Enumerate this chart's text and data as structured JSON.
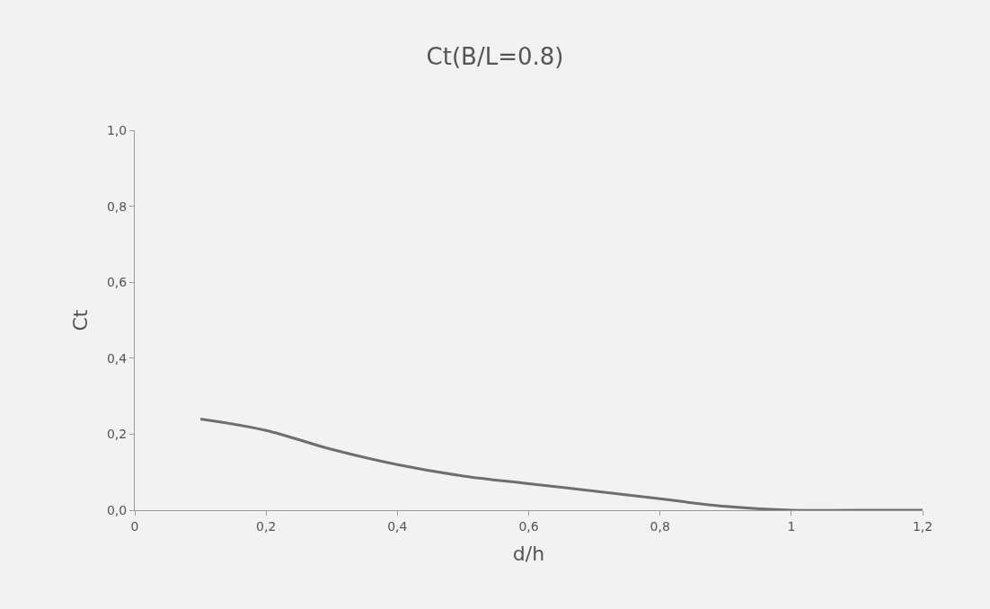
{
  "chart_data": {
    "type": "line",
    "title": "Ct(B/L=0.8)",
    "xlabel": "d/h",
    "ylabel": "Ct",
    "x": [
      0.1,
      0.2,
      0.3,
      0.4,
      0.5,
      0.6,
      0.7,
      0.8,
      0.9,
      1.0,
      1.1,
      1.2
    ],
    "series": [
      {
        "color": "#6e6e6e",
        "values": [
          0.24,
          0.21,
          0.16,
          0.12,
          0.09,
          0.07,
          0.05,
          0.03,
          0.01,
          0.0,
          0.0,
          0.0
        ]
      }
    ],
    "xlim": [
      0,
      1.2
    ],
    "ylim": [
      0,
      1.0
    ],
    "xticks": [
      0,
      {
        "value": 0.2,
        "label": "0,2"
      },
      {
        "value": 0.4,
        "label": "0,4"
      },
      {
        "value": 0.6,
        "label": "0,6"
      },
      {
        "value": 0.8,
        "label": "0,8"
      },
      1,
      {
        "value": 1.2,
        "label": "1,2"
      }
    ],
    "yticks": [
      {
        "value": 0.0,
        "label": "0,0"
      },
      {
        "value": 0.2,
        "label": "0,2"
      },
      {
        "value": 0.4,
        "label": "0,4"
      },
      {
        "value": 0.6,
        "label": "0,6"
      },
      {
        "value": 0.8,
        "label": "0,8"
      },
      {
        "value": 1.0,
        "label": "1,0"
      }
    ],
    "grid": false,
    "marker": "none",
    "line_style": "solid"
  }
}
